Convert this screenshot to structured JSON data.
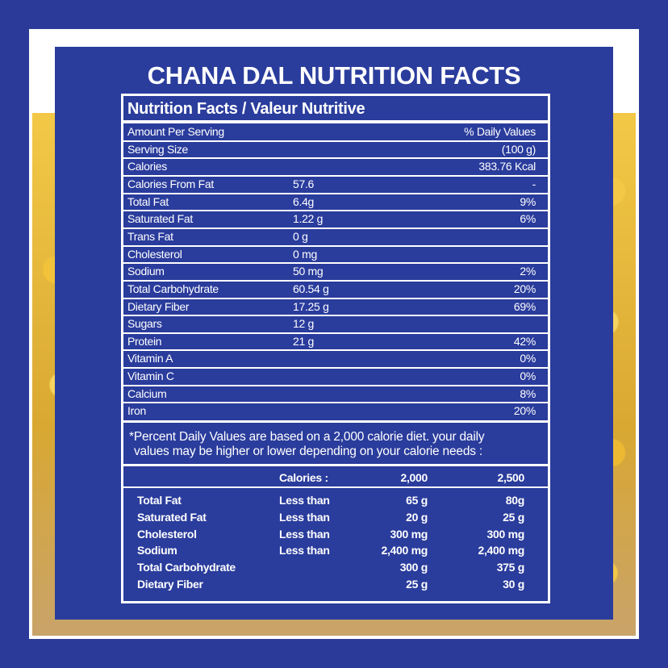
{
  "title": "CHANA DAL NUTRITION FACTS",
  "label": {
    "heading": "Nutrition Facts / Valeur Nutritive",
    "header": {
      "name": "Amount Per Serving",
      "dv": "% Daily Values"
    },
    "rows": [
      {
        "name": "Serving Size",
        "dv": "(100 g)"
      },
      {
        "name": "Calories",
        "dv": "383.76 Kcal"
      },
      {
        "name": "Calories From Fat",
        "amount": "57.6",
        "dv": "-"
      },
      {
        "name": "Total Fat",
        "amount": "6.4g",
        "dv": "9%"
      },
      {
        "name": "Saturated Fat",
        "amount": "1.22 g",
        "dv": "6%"
      },
      {
        "name": "Trans Fat",
        "amount": "0 g"
      },
      {
        "name": "Cholesterol",
        "amount": "0 mg"
      },
      {
        "name": "Sodium",
        "amount": "50 mg",
        "dv": "2%"
      },
      {
        "name": "Total Carbohydrate",
        "amount": "60.54 g",
        "dv": "20%"
      },
      {
        "name": "Dietary Fiber",
        "amount": "17.25 g",
        "dv": "69%"
      },
      {
        "name": "Sugars",
        "amount": "12 g"
      },
      {
        "name": "Protein",
        "amount": "21 g",
        "dv": "42%"
      },
      {
        "name": "Vitamin A",
        "dv": "0%"
      },
      {
        "name": "Vitamin C",
        "dv": "0%"
      },
      {
        "name": "Calcium",
        "dv": "8%"
      },
      {
        "name": "Iron",
        "dv": "20%"
      }
    ],
    "footnote": [
      "*Percent Daily Values are based on a 2,000 calorie diet. your daily",
      "values may be higher or lower depending on your calorie needs :"
    ],
    "reference": {
      "header": {
        "qualifier": "Calories :",
        "a": "2,000",
        "b": "2,500"
      },
      "rows": [
        {
          "name": "Total Fat",
          "qualifier": "Less than",
          "a": "65 g",
          "b": "80g"
        },
        {
          "name": "Saturated Fat",
          "qualifier": "Less than",
          "a": "20 g",
          "b": "25 g"
        },
        {
          "name": "Cholesterol",
          "qualifier": "Less than",
          "a": "300 mg",
          "b": "300 mg"
        },
        {
          "name": "Sodium",
          "qualifier": "Less than",
          "a": "2,400 mg",
          "b": "2,400 mg"
        },
        {
          "name": "Total Carbohydrate",
          "a": "300 g",
          "b": "375 g"
        },
        {
          "name": "Dietary Fiber",
          "a": "25 g",
          "b": "30 g"
        }
      ]
    }
  }
}
